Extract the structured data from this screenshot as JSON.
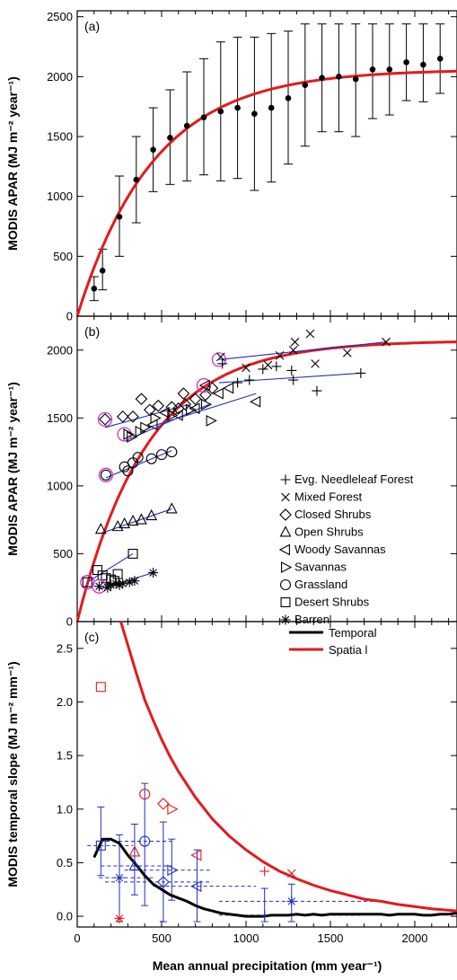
{
  "chart_data": [
    {
      "panel": "(a)",
      "type": "scatter",
      "ylabel": "MODIS APAR (MJ m⁻² year⁻¹)",
      "xlim": [
        0,
        2250
      ],
      "ylim": [
        0,
        2550
      ],
      "yticks": [
        "0",
        "500",
        "1000",
        "1500",
        "2000",
        "2500"
      ],
      "marker_color": "#000000",
      "fit_color": "#e31a1c",
      "points": [
        {
          "x": 100,
          "y": 230,
          "lo": 130,
          "hi": 330
        },
        {
          "x": 150,
          "y": 380,
          "lo": 220,
          "hi": 560
        },
        {
          "x": 250,
          "y": 830,
          "lo": 500,
          "hi": 1170
        },
        {
          "x": 350,
          "y": 1140,
          "lo": 780,
          "hi": 1500
        },
        {
          "x": 450,
          "y": 1390,
          "lo": 1040,
          "hi": 1740
        },
        {
          "x": 550,
          "y": 1490,
          "lo": 1100,
          "hi": 1890
        },
        {
          "x": 650,
          "y": 1590,
          "lo": 1130,
          "hi": 2040
        },
        {
          "x": 750,
          "y": 1660,
          "lo": 1180,
          "hi": 2150
        },
        {
          "x": 850,
          "y": 1710,
          "lo": 1130,
          "hi": 2290
        },
        {
          "x": 950,
          "y": 1740,
          "lo": 1150,
          "hi": 2330
        },
        {
          "x": 1050,
          "y": 1690,
          "lo": 1050,
          "hi": 2330
        },
        {
          "x": 1150,
          "y": 1740,
          "lo": 1120,
          "hi": 2360
        },
        {
          "x": 1250,
          "y": 1820,
          "lo": 1270,
          "hi": 2380
        },
        {
          "x": 1350,
          "y": 1930,
          "lo": 1420,
          "hi": 2440
        },
        {
          "x": 1450,
          "y": 1990,
          "lo": 1540,
          "hi": 2440
        },
        {
          "x": 1550,
          "y": 2000,
          "lo": 1540,
          "hi": 2440
        },
        {
          "x": 1650,
          "y": 1980,
          "lo": 1500,
          "hi": 2440
        },
        {
          "x": 1750,
          "y": 2060,
          "lo": 1650,
          "hi": 2440
        },
        {
          "x": 1850,
          "y": 2060,
          "lo": 1680,
          "hi": 2440
        },
        {
          "x": 1950,
          "y": 2120,
          "lo": 1800,
          "hi": 2440
        },
        {
          "x": 2050,
          "y": 2100,
          "lo": 1790,
          "hi": 2440
        },
        {
          "x": 2150,
          "y": 2150,
          "lo": 1860,
          "hi": 2440
        }
      ],
      "fit": {
        "asymptote": 2060,
        "rate": 0.0022,
        "x0": 0
      }
    },
    {
      "panel": "(b)",
      "type": "scatter",
      "ylabel": "MODIS APAR (MJ m⁻² year⁻¹)",
      "xlim": [
        0,
        2250
      ],
      "ylim": [
        0,
        2250
      ],
      "yticks": [
        "0",
        "500",
        "1000",
        "1500",
        "2000"
      ],
      "fit_color": "#e31a1c",
      "trend_color": "#1f2fbf",
      "highlight_color": "#cc33cc",
      "fit": {
        "asymptote": 2070,
        "rate": 0.0024,
        "x0": 0
      },
      "legend": [
        {
          "symbol": "plus",
          "label": "Evg. Needleleaf Forest"
        },
        {
          "symbol": "cross",
          "label": "Mixed Forest"
        },
        {
          "symbol": "diamond",
          "label": "Closed Shrubs"
        },
        {
          "symbol": "triangle-up",
          "label": "Open Shrubs"
        },
        {
          "symbol": "triangle-left",
          "label": "Woody Savannas"
        },
        {
          "symbol": "triangle-right",
          "label": "Savannas"
        },
        {
          "symbol": "circle",
          "label": "Grassland"
        },
        {
          "symbol": "square",
          "label": "Desert Shrubs"
        },
        {
          "symbol": "asterisk",
          "label": "Barren"
        }
      ],
      "groups": [
        {
          "symbol": "plus",
          "trend": [
            [
              840,
              1760
            ],
            [
              1680,
              1830
            ]
          ],
          "highlight": [
            840,
            1930
          ],
          "points": [
            [
              860,
              1900
            ],
            [
              950,
              1760
            ],
            [
              1020,
              1780
            ],
            [
              1100,
              1860
            ],
            [
              1180,
              1880
            ],
            [
              1270,
              1850
            ],
            [
              1280,
              1780
            ],
            [
              1420,
              1700
            ],
            [
              1680,
              1830
            ]
          ]
        },
        {
          "symbol": "cross",
          "trend": [
            [
              840,
              1930
            ],
            [
              1830,
              2060
            ]
          ],
          "points": [
            [
              850,
              1950
            ],
            [
              1000,
              1870
            ],
            [
              1130,
              1890
            ],
            [
              1200,
              1960
            ],
            [
              1280,
              2000
            ],
            [
              1290,
              2060
            ],
            [
              1380,
              2120
            ],
            [
              1410,
              1900
            ],
            [
              1600,
              1980
            ],
            [
              1830,
              2060
            ]
          ]
        },
        {
          "symbol": "diamond",
          "trend": [
            [
              165,
              1430
            ],
            [
              660,
              1600
            ]
          ],
          "highlight": [
            165,
            1490
          ],
          "points": [
            [
              165,
              1490
            ],
            [
              270,
              1510
            ],
            [
              330,
              1510
            ],
            [
              380,
              1640
            ],
            [
              430,
              1560
            ],
            [
              480,
              1590
            ],
            [
              560,
              1580
            ],
            [
              600,
              1570
            ],
            [
              630,
              1680
            ],
            [
              640,
              1600
            ],
            [
              700,
              1640
            ],
            [
              760,
              1670
            ],
            [
              800,
              1720
            ]
          ]
        },
        {
          "symbol": "triangle-up",
          "trend": [
            [
              140,
              650
            ],
            [
              560,
              830
            ]
          ],
          "points": [
            [
              140,
              680
            ],
            [
              240,
              700
            ],
            [
              280,
              720
            ],
            [
              330,
              740
            ],
            [
              380,
              750
            ],
            [
              440,
              780
            ],
            [
              560,
              830
            ]
          ]
        },
        {
          "symbol": "triangle-left",
          "trend": [
            [
              420,
              1430
            ],
            [
              1060,
              1680
            ]
          ],
          "highlight": [
            750,
            1740
          ],
          "points": [
            [
              450,
              1450
            ],
            [
              520,
              1540
            ],
            [
              600,
              1520
            ],
            [
              700,
              1570
            ],
            [
              760,
              1740
            ],
            [
              840,
              1680
            ],
            [
              900,
              1720
            ],
            [
              1060,
              1620
            ]
          ]
        },
        {
          "symbol": "triangle-right",
          "trend": [
            [
              280,
              1330
            ],
            [
              780,
              1600
            ]
          ],
          "highlight": [
            280,
            1380
          ],
          "points": [
            [
              300,
              1380
            ],
            [
              320,
              1360
            ],
            [
              370,
              1400
            ],
            [
              400,
              1430
            ],
            [
              460,
              1500
            ],
            [
              560,
              1520
            ],
            [
              670,
              1560
            ],
            [
              760,
              1600
            ],
            [
              790,
              1480
            ]
          ]
        },
        {
          "symbol": "circle",
          "trend": [
            [
              170,
              1060
            ],
            [
              560,
              1260
            ]
          ],
          "highlight": [
            170,
            1080
          ],
          "points": [
            [
              170,
              1080
            ],
            [
              280,
              1140
            ],
            [
              300,
              1110
            ],
            [
              330,
              1170
            ],
            [
              360,
              1210
            ],
            [
              440,
              1200
            ],
            [
              500,
              1230
            ],
            [
              560,
              1250
            ]
          ]
        },
        {
          "symbol": "square",
          "trend": [
            [
              60,
              290
            ],
            [
              330,
              500
            ]
          ],
          "highlight": [
            60,
            290
          ],
          "points": [
            [
              60,
              290
            ],
            [
              120,
              380
            ],
            [
              150,
              340
            ],
            [
              170,
              320
            ],
            [
              200,
              310
            ],
            [
              220,
              300
            ],
            [
              240,
              350
            ],
            [
              330,
              500
            ]
          ]
        },
        {
          "symbol": "asterisk",
          "trend": [
            [
              130,
              240
            ],
            [
              450,
              360
            ]
          ],
          "highlight": [
            130,
            260
          ],
          "points": [
            [
              130,
              260
            ],
            [
              180,
              250
            ],
            [
              200,
              270
            ],
            [
              230,
              280
            ],
            [
              250,
              270
            ],
            [
              270,
              280
            ],
            [
              310,
              290
            ],
            [
              340,
              300
            ],
            [
              450,
              360
            ]
          ]
        }
      ]
    },
    {
      "panel": "(c)",
      "type": "line",
      "ylabel": "MODIS temporal slope (MJ m⁻² mm⁻¹)",
      "xlabel": "Mean annual precipitation (mm year⁻¹)",
      "xlim": [
        0,
        2250
      ],
      "ylim": [
        -0.1,
        2.75
      ],
      "xticks": [
        "0",
        "500",
        "1000",
        "1500",
        "2000"
      ],
      "yticks": [
        "0.0",
        "0.5",
        "1.0",
        "1.5",
        "2.0",
        "2.5"
      ],
      "legend": [
        {
          "label": "Temporal",
          "color": "#000000"
        },
        {
          "label": "Spatia l",
          "color": "#e31a1c"
        }
      ],
      "series": [
        {
          "name": "Temporal",
          "color": "#000000",
          "x": [
            100,
            150,
            200,
            250,
            300,
            350,
            400,
            450,
            500,
            550,
            600,
            650,
            700,
            750,
            800,
            850,
            900,
            950,
            1000,
            1050,
            1100,
            1150,
            1200,
            1250,
            1300,
            1350,
            1400,
            1450,
            1500,
            1550,
            1600,
            1650,
            1700,
            1750,
            1800,
            1850,
            1900,
            1950,
            2000,
            2050,
            2100,
            2150,
            2200,
            2250
          ],
          "y": [
            0.55,
            0.72,
            0.72,
            0.68,
            0.57,
            0.48,
            0.38,
            0.3,
            0.25,
            0.2,
            0.17,
            0.14,
            0.1,
            0.07,
            0.05,
            0.03,
            0.02,
            0.01,
            0.0,
            0.0,
            0.0,
            0.01,
            0.01,
            0.01,
            0.02,
            0.01,
            0.02,
            0.01,
            0.02,
            0.02,
            0.02,
            0.02,
            0.02,
            0.02,
            0.02,
            0.01,
            0.02,
            0.02,
            0.02,
            0.01,
            0.01,
            0.02,
            0.02,
            0.03
          ]
        },
        {
          "name": "Spatia l",
          "color": "#e31a1c",
          "x": [
            258,
            300,
            350,
            400,
            450,
            500,
            550,
            600,
            700,
            800,
            900,
            1000,
            1100,
            1200,
            1300,
            1400,
            1500,
            1600,
            1700,
            1800,
            1900,
            2000,
            2100,
            2250
          ],
          "y": [
            2.75,
            2.53,
            2.27,
            2.02,
            1.83,
            1.65,
            1.49,
            1.35,
            1.11,
            0.91,
            0.75,
            0.62,
            0.51,
            0.42,
            0.35,
            0.29,
            0.24,
            0.2,
            0.16,
            0.14,
            0.11,
            0.09,
            0.07,
            0.05
          ]
        }
      ],
      "blue_points": [
        {
          "symbol": "square",
          "x": 140,
          "y": 0.66,
          "ylo": 0.38,
          "yhi": 1.02,
          "xlo": 60,
          "xhi": 330
        },
        {
          "symbol": "asterisk",
          "x": 250,
          "y": 0.36,
          "ylo": -0.05,
          "yhi": 0.76,
          "xlo": 130,
          "xhi": 450
        },
        {
          "symbol": "triangle-up",
          "x": 340,
          "y": 0.47,
          "ylo": 0.2,
          "yhi": 0.86,
          "xlo": 140,
          "xhi": 560
        },
        {
          "symbol": "circle",
          "x": 400,
          "y": 0.7,
          "ylo": 0.1,
          "yhi": 1.24,
          "xlo": 170,
          "xhi": 560
        },
        {
          "symbol": "diamond",
          "x": 510,
          "y": 0.32,
          "ylo": -0.05,
          "yhi": 0.88,
          "xlo": 165,
          "xhi": 800
        },
        {
          "symbol": "triangle-right",
          "x": 560,
          "y": 0.43,
          "ylo": 0.15,
          "yhi": 0.72,
          "xlo": 280,
          "xhi": 790
        },
        {
          "symbol": "triangle-left",
          "x": 710,
          "y": 0.28,
          "ylo": -0.05,
          "yhi": 0.62,
          "xlo": 450,
          "xhi": 1060
        },
        {
          "symbol": "plus",
          "x": 1110,
          "y": 0.01,
          "ylo": -0.05,
          "yhi": 0.26,
          "xlo": 840,
          "xhi": 1680
        },
        {
          "symbol": "asterisk",
          "x": 1270,
          "y": 0.14,
          "ylo": -0.05,
          "yhi": 0.3,
          "xlo": 840,
          "xhi": 1830
        }
      ],
      "red_points": [
        {
          "symbol": "square",
          "x": 140,
          "y": 2.14
        },
        {
          "symbol": "asterisk",
          "x": 250,
          "y": -0.02
        },
        {
          "symbol": "triangle-up",
          "x": 340,
          "y": 0.6
        },
        {
          "symbol": "circle",
          "x": 400,
          "y": 1.14
        },
        {
          "symbol": "diamond",
          "x": 510,
          "y": 1.05
        },
        {
          "symbol": "triangle-right",
          "x": 560,
          "y": 1.0
        },
        {
          "symbol": "triangle-left",
          "x": 710,
          "y": 0.57
        },
        {
          "symbol": "plus",
          "x": 1110,
          "y": 0.42
        },
        {
          "symbol": "cross",
          "x": 1270,
          "y": 0.4
        }
      ]
    }
  ]
}
